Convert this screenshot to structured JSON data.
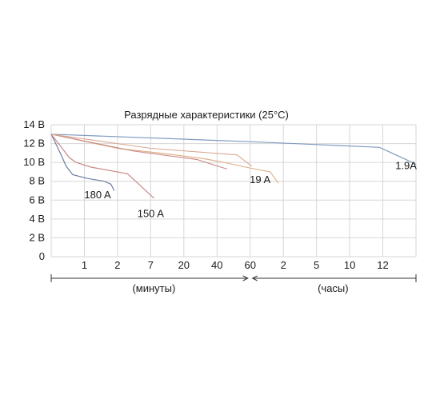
{
  "chart_data": {
    "type": "line",
    "title": "Разрядные характеристики (25°С)",
    "y_tick_labels": [
      "14 В",
      "12 В",
      "10 В",
      "8 В",
      "6 В",
      "4 В",
      "2 В",
      "0"
    ],
    "y_tick_values": [
      14,
      12,
      10,
      8,
      6,
      4,
      2,
      0
    ],
    "ylim": [
      0,
      14
    ],
    "x_tick_labels": [
      "1",
      "2",
      "7",
      "20",
      "40",
      "60",
      "2",
      "5",
      "10",
      "12"
    ],
    "x_tick_index": [
      1,
      2,
      3,
      4,
      5,
      6,
      7,
      8,
      9,
      10
    ],
    "x_range_labels": [
      "(минуты)",
      "(часы)"
    ],
    "grid": true,
    "colors": {
      "180A": "#6a7fa3",
      "150A": "#c98a86",
      "19A": "#e0b48e",
      "1.9A": "#7f9bc0",
      "grid": "#d6d6d6"
    },
    "series": [
      {
        "name": "180 A",
        "points": [
          [
            0,
            13.0
          ],
          [
            0.3,
            10.8
          ],
          [
            0.45,
            9.6
          ],
          [
            0.65,
            8.7
          ],
          [
            1.1,
            8.3
          ],
          [
            1.6,
            8.0
          ],
          [
            1.8,
            7.7
          ],
          [
            1.9,
            7.0
          ]
        ]
      },
      {
        "name": "150 A",
        "points": [
          [
            0,
            13.0
          ],
          [
            0.55,
            10.5
          ],
          [
            0.75,
            10.0
          ],
          [
            1.2,
            9.5
          ],
          [
            2.3,
            8.8
          ],
          [
            2.7,
            7.5
          ],
          [
            3.1,
            6.2
          ]
        ]
      },
      {
        "name": "19 A",
        "points": [
          [
            0,
            13.0
          ],
          [
            2.0,
            11.5
          ],
          [
            3.5,
            10.9
          ],
          [
            4.6,
            10.4
          ],
          [
            5.2,
            10.0
          ],
          [
            6.0,
            9.4
          ],
          [
            6.6,
            9.0
          ],
          [
            6.85,
            7.8
          ]
        ]
      },
      {
        "name": "1.9A",
        "points": [
          [
            0,
            13.0
          ],
          [
            6.0,
            12.2
          ],
          [
            8.0,
            11.9
          ],
          [
            8.6,
            11.8
          ],
          [
            9.9,
            11.6
          ],
          [
            10.7,
            10.3
          ],
          [
            11.0,
            9.8
          ]
        ]
      }
    ],
    "extra_lines": [
      {
        "color": "#c98a86",
        "points": [
          [
            0,
            13.0
          ],
          [
            2.5,
            11.2
          ],
          [
            4.4,
            10.3
          ],
          [
            5.3,
            9.3
          ]
        ]
      },
      {
        "color": "#d7a991",
        "points": [
          [
            0,
            13.0
          ],
          [
            3.0,
            11.5
          ],
          [
            5.6,
            10.8
          ],
          [
            6.05,
            9.6
          ]
        ]
      }
    ],
    "label_positions": {
      "180 A": [
        1.4,
        6.2
      ],
      "150 A": [
        3.0,
        4.2
      ],
      "19 A": [
        6.3,
        7.8
      ],
      "1.9A": [
        10.7,
        9.3
      ]
    }
  }
}
